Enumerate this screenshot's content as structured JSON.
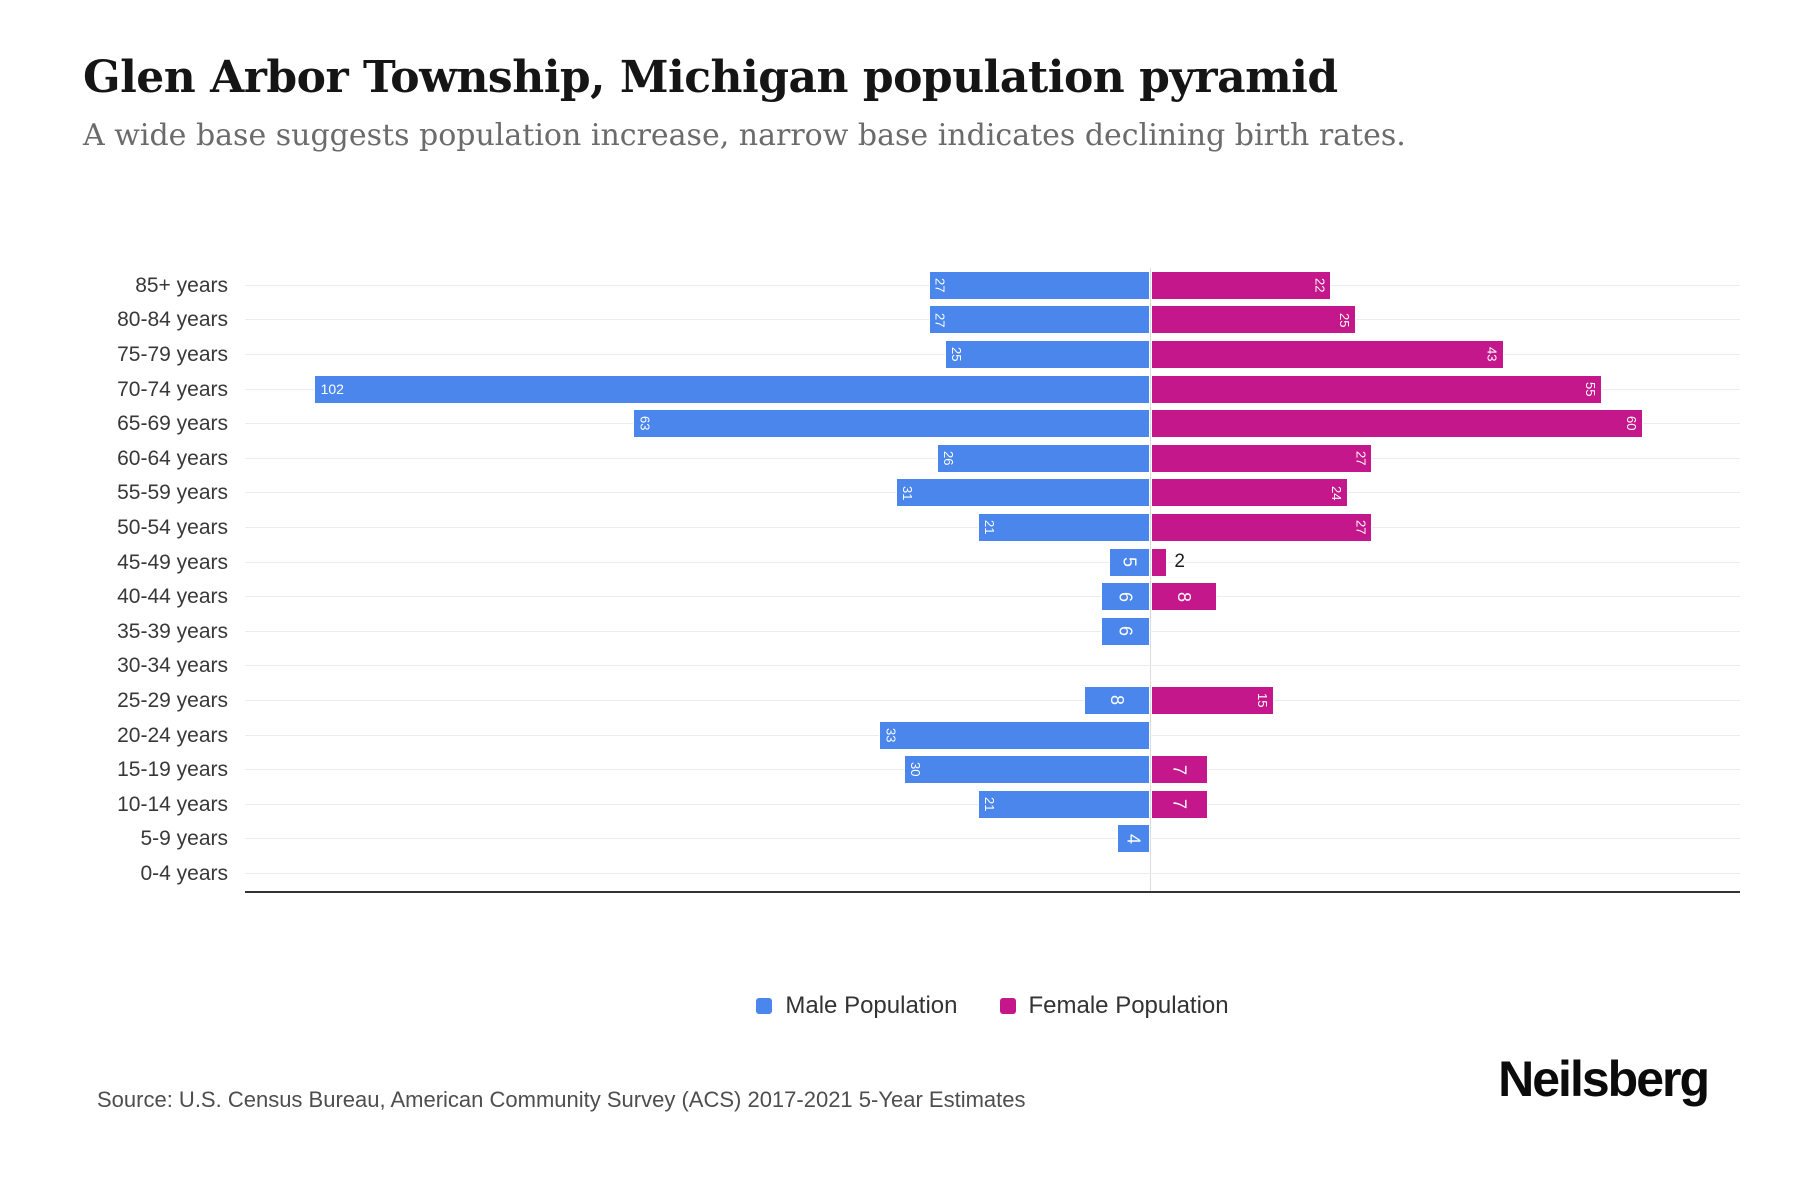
{
  "title": "Glen Arbor Township, Michigan population pyramid",
  "subtitle": "A wide base suggests population increase, narrow base indicates declining birth rates.",
  "chart_data": {
    "type": "bar",
    "variant": "population-pyramid",
    "categories": [
      "85+ years",
      "80-84 years",
      "75-79 years",
      "70-74 years",
      "65-69 years",
      "60-64 years",
      "55-59 years",
      "50-54 years",
      "45-49 years",
      "40-44 years",
      "35-39 years",
      "30-34 years",
      "25-29 years",
      "20-24 years",
      "15-19 years",
      "10-14 years",
      "5-9 years",
      "0-4 years"
    ],
    "series": [
      {
        "name": "Male Population",
        "color": "#4A86EC",
        "values": [
          27,
          27,
          25,
          102,
          63,
          26,
          31,
          21,
          5,
          6,
          6,
          0,
          8,
          33,
          30,
          21,
          4,
          0
        ]
      },
      {
        "name": "Female Population",
        "color": "#C4178C",
        "values": [
          22,
          25,
          43,
          55,
          60,
          27,
          24,
          27,
          2,
          8,
          0,
          0,
          15,
          0,
          7,
          7,
          0,
          0
        ]
      }
    ],
    "xlim_male": [
      0,
      110
    ],
    "xlim_female": [
      0,
      72
    ],
    "x_ticks_visible": false,
    "grid": true,
    "legend_position": "bottom-center",
    "bar_label_style": "inside far end, rotated 90deg, white; tiny bars labeled outside in black"
  },
  "legend": {
    "male_label": "Male Population",
    "female_label": "Female Population"
  },
  "source": "Source: U.S. Census Bureau, American Community Survey (ACS) 2017-2021 5-Year Estimates",
  "brand": "Neilsberg",
  "colors": {
    "male": "#4A86EC",
    "female": "#C4178C",
    "axis": "#333333",
    "grid": "#ececec",
    "center_line": "#dcdcdc",
    "title": "#151515",
    "subtitle": "#6b6b6b",
    "age_label": "#383838",
    "outside_value_label": "#1c1c1c"
  }
}
